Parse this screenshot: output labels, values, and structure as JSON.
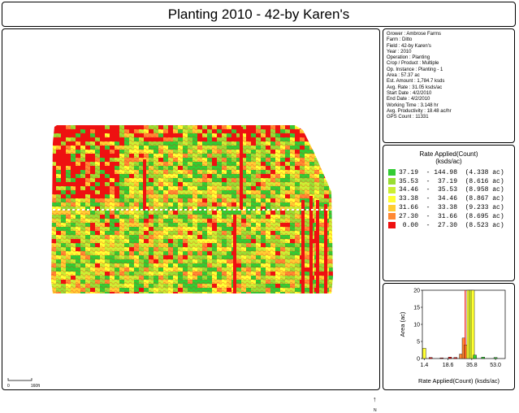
{
  "title": "Planting 2010 - 42-by Karen's",
  "info": [
    "Grower : Ambrose Farms",
    "Farm : Ditto",
    "Field : 42-by Karen's",
    "Year : 2010",
    "Operation : Planting",
    "Crop / Product : Multiple",
    "Op. Instance : Planting - 1",
    "Area : 57.37 ac",
    "Est. Amount : 1,784.7 ksds",
    "Avg. Rate : 31.05 ksds/ac",
    "Start Date : 4/2/2010",
    "End Date : 4/2/2010",
    "Working Time : 3.148 hr",
    "Avg. Productivity : 18.48 ac/hr",
    "GPS Count : 11331"
  ],
  "legend": {
    "title_line1": "Rate Applied(Count)",
    "title_line2": "(ksds/ac)",
    "rows": [
      {
        "label": "37.19  - 144.98  (4.338 ac)",
        "color": "#33cc33"
      },
      {
        "label": "35.53  -  37.19  (8.616 ac)",
        "color": "#99dd33"
      },
      {
        "label": "34.46  -  35.53  (8.958 ac)",
        "color": "#ccee33"
      },
      {
        "label": "33.38  -  34.46  (8.867 ac)",
        "color": "#ffff33"
      },
      {
        "label": "31.66  -  33.38  (9.233 ac)",
        "color": "#ffcc33"
      },
      {
        "label": "27.30  -  31.66  (8.695 ac)",
        "color": "#ff8833"
      },
      {
        "label": " 0.00  -  27.30  (8.523 ac)",
        "color": "#ee1111"
      }
    ]
  },
  "map": {
    "scale_zero": "0",
    "scale_label": "160ft",
    "north_symbol": "↑",
    "north_letter": "N"
  },
  "chart_data": {
    "type": "bar",
    "xlabel": "Rate Applied(Count) (ksds/ac)",
    "ylabel": "Area (ac)",
    "ylim": [
      0,
      20
    ],
    "yticks": [
      "0",
      "5",
      "10",
      "15",
      "20"
    ],
    "xticks": [
      "1.4",
      "18.6",
      "35.8",
      "53.0"
    ],
    "xlim": [
      0,
      60
    ],
    "bars": [
      {
        "x": 1.4,
        "value": 3.0,
        "color": "#ffff33"
      },
      {
        "x": 6.0,
        "value": 0.3,
        "color": "#ee1111"
      },
      {
        "x": 14.0,
        "value": 0.2,
        "color": "#ee1111"
      },
      {
        "x": 20.0,
        "value": 0.4,
        "color": "#ee1111"
      },
      {
        "x": 24.0,
        "value": 0.3,
        "color": "#ee1111"
      },
      {
        "x": 28.0,
        "value": 1.3,
        "color": "#ff8833"
      },
      {
        "x": 30.0,
        "value": 6.0,
        "color": "#ff8833"
      },
      {
        "x": 31.5,
        "value": 4.0,
        "color": "#ffcc33"
      },
      {
        "x": 33.5,
        "value": 20.0,
        "color": "#ffff33"
      },
      {
        "x": 35.0,
        "value": 20.0,
        "color": "#ccee33"
      },
      {
        "x": 36.5,
        "value": 20.0,
        "color": "#ffff33"
      },
      {
        "x": 38.0,
        "value": 1.0,
        "color": "#33cc33"
      },
      {
        "x": 44.0,
        "value": 0.4,
        "color": "#33cc33"
      },
      {
        "x": 53.0,
        "value": 0.3,
        "color": "#33cc33"
      }
    ],
    "avg_line": 31.05
  }
}
